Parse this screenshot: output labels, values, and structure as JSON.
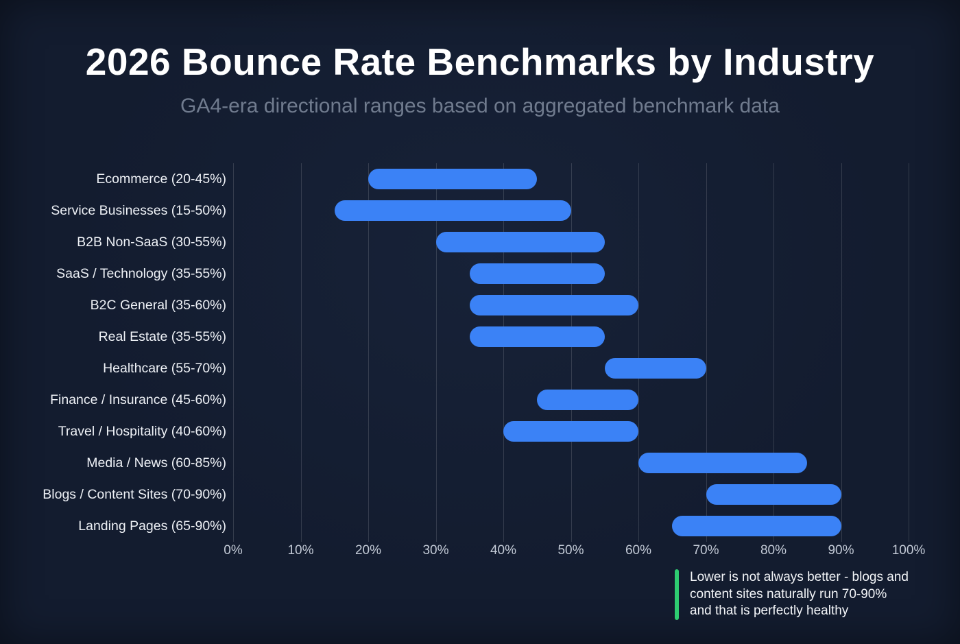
{
  "header": {
    "title": "2026 Bounce Rate Benchmarks by Industry",
    "subtitle": "GA4-era directional ranges based on aggregated benchmark data"
  },
  "chart_data": {
    "type": "bar",
    "variant": "horizontal-range-bars",
    "title": "2026 Bounce Rate Benchmarks by Industry",
    "subtitle": "GA4-era directional ranges based on aggregated benchmark data",
    "categories": [
      "Ecommerce (20-45%)",
      "Service Businesses (15-50%)",
      "B2B Non-SaaS (30-55%)",
      "SaaS / Technology (35-55%)",
      "B2C General (35-60%)",
      "Real Estate (35-55%)",
      "Healthcare (55-70%)",
      "Finance / Insurance (45-60%)",
      "Travel / Hospitality (40-60%)",
      "Media / News (60-85%)",
      "Blogs / Content Sites (70-90%)",
      "Landing Pages (65-90%)"
    ],
    "ranges": [
      [
        20,
        45
      ],
      [
        15,
        50
      ],
      [
        30,
        55
      ],
      [
        35,
        55
      ],
      [
        35,
        60
      ],
      [
        35,
        55
      ],
      [
        55,
        70
      ],
      [
        45,
        60
      ],
      [
        40,
        60
      ],
      [
        60,
        85
      ],
      [
        70,
        90
      ],
      [
        65,
        90
      ]
    ],
    "xlabel": "",
    "ylabel": "",
    "xlim": [
      0,
      100
    ],
    "ticks": [
      0,
      10,
      20,
      30,
      40,
      50,
      60,
      70,
      80,
      90,
      100
    ],
    "tick_suffix": "%",
    "grid": "vertical",
    "legend": "none",
    "bar_color": "#3b82f6",
    "background_color": "#131c2f",
    "grid_color": "rgba(255,255,255,0.14)"
  },
  "annotation": {
    "lines": {
      "0": "Lower is not always better - blogs and",
      "1": "content sites naturally run 70-90%",
      "2": "and that is perfectly healthy"
    },
    "accent_color": "#2ecc71"
  }
}
